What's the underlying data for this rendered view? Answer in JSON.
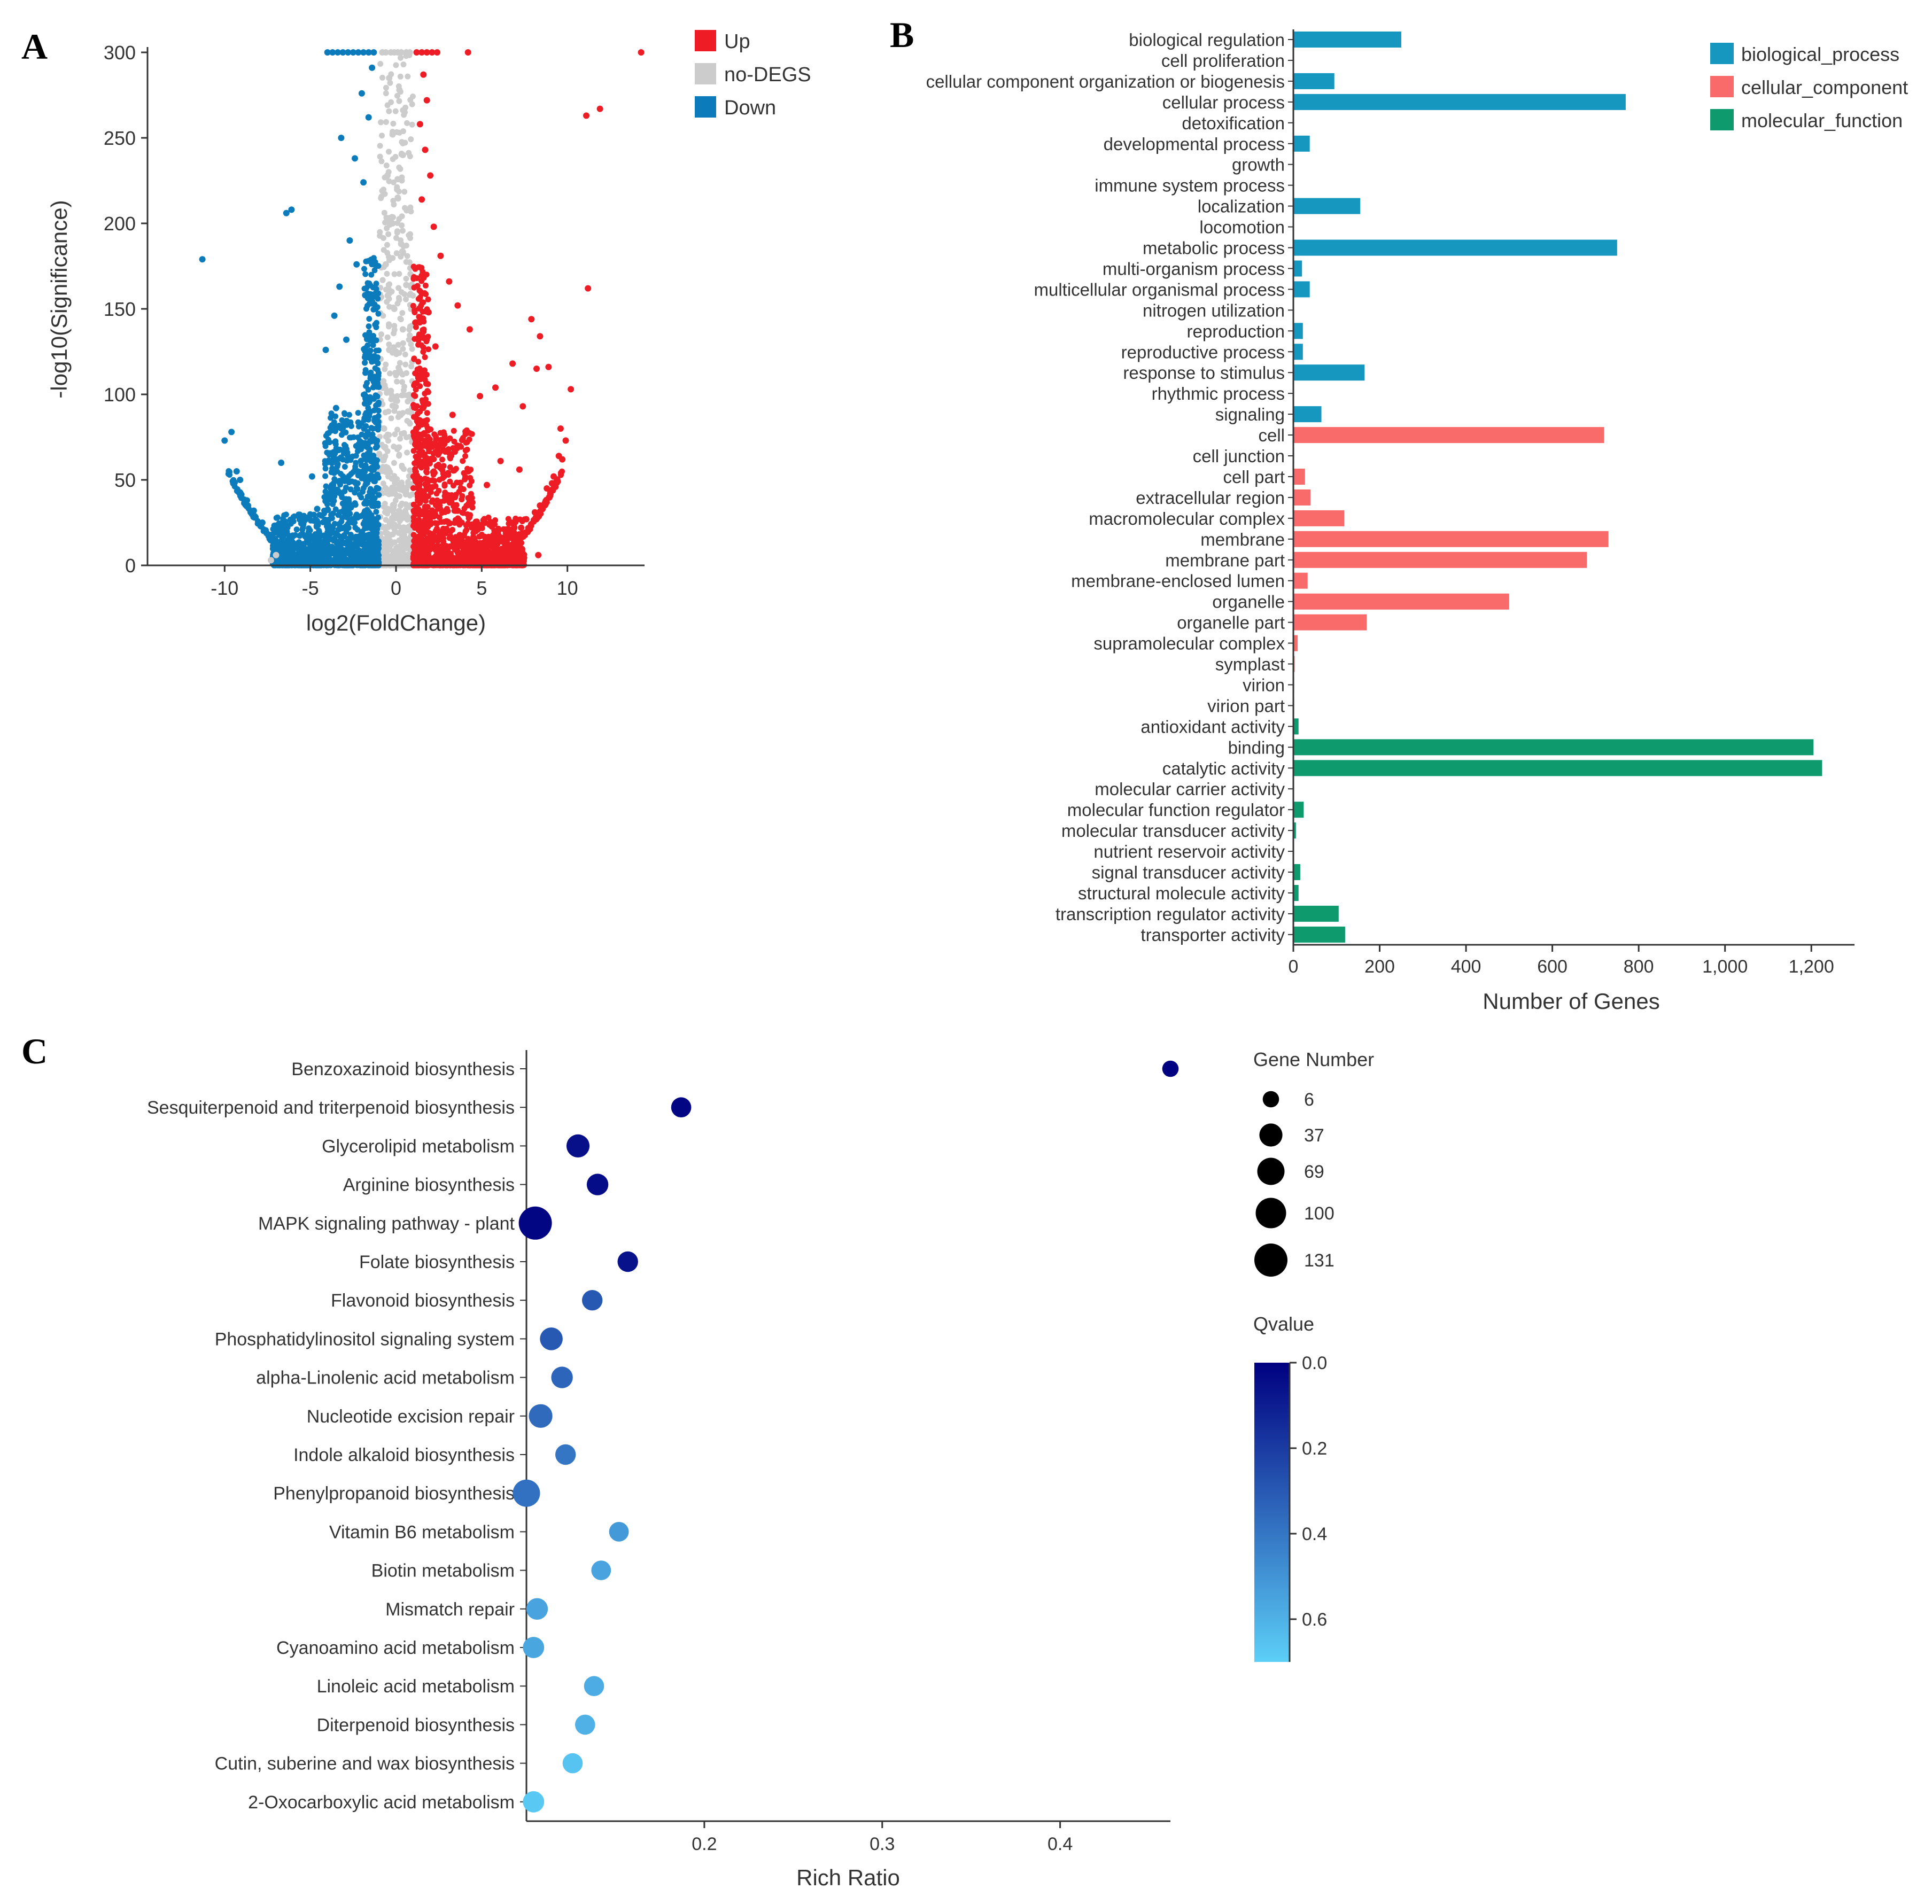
{
  "colors": {
    "up": "#ee1c25",
    "nodeg": "#cccccc",
    "down": "#0c7bbc",
    "biological_process": "#1597c0",
    "cellular_component": "#f96a6a",
    "molecular_function": "#0f9a6e",
    "q_low": "#000080",
    "q_high": "#5ccff7",
    "axis": "#333333",
    "text": "#333333"
  },
  "panels": {
    "a": "A",
    "b": "B",
    "c": "C"
  },
  "chart_data": [
    {
      "id": "A",
      "type": "scatter",
      "title": "",
      "xlabel": "log2(FoldChange)",
      "ylabel": "-log10(Significance)",
      "xlim": [
        -14.5,
        14.5
      ],
      "ylim": [
        0,
        300
      ],
      "xticks": [
        -10,
        -5,
        0,
        5,
        10
      ],
      "yticks": [
        0,
        50,
        100,
        150,
        200,
        250,
        300
      ],
      "legend": [
        {
          "key": "up",
          "label": "Up"
        },
        {
          "key": "nodeg",
          "label": "no-DEGS"
        },
        {
          "key": "down",
          "label": "Down"
        }
      ],
      "points_up": [
        [
          1.2,
          300
        ],
        [
          1.5,
          300
        ],
        [
          1.8,
          300
        ],
        [
          2.1,
          300
        ],
        [
          2.4,
          300
        ],
        [
          4.2,
          300
        ],
        [
          14.3,
          300
        ],
        [
          11.9,
          267
        ],
        [
          11.1,
          263
        ],
        [
          1.6,
          287
        ],
        [
          1.8,
          272
        ],
        [
          1.4,
          258
        ],
        [
          1.7,
          243
        ],
        [
          2.0,
          228
        ],
        [
          1.5,
          214
        ],
        [
          2.2,
          198
        ],
        [
          2.6,
          181
        ],
        [
          3.1,
          166
        ],
        [
          11.2,
          162
        ],
        [
          3.6,
          152
        ],
        [
          7.9,
          144
        ],
        [
          8.4,
          134
        ],
        [
          1.9,
          148
        ],
        [
          4.3,
          138
        ],
        [
          2.3,
          128
        ],
        [
          8.2,
          115
        ],
        [
          8.9,
          116
        ],
        [
          6.8,
          118
        ],
        [
          10.2,
          103
        ],
        [
          5.8,
          104
        ],
        [
          4.9,
          99
        ],
        [
          7.4,
          93
        ],
        [
          3.3,
          88
        ],
        [
          9.6,
          80
        ],
        [
          9.9,
          73
        ],
        [
          9.5,
          64
        ],
        [
          7.2,
          56
        ],
        [
          6.1,
          61
        ],
        [
          5.3,
          47
        ],
        [
          4.3,
          38
        ],
        [
          3.6,
          32
        ],
        [
          8.8,
          45
        ],
        [
          9.2,
          52
        ],
        [
          8.4,
          35
        ],
        [
          7.6,
          27
        ],
        [
          6.9,
          22
        ],
        [
          6.2,
          16
        ],
        [
          5.6,
          11
        ],
        [
          4.9,
          7
        ],
        [
          4.3,
          4
        ],
        [
          3.8,
          2
        ],
        [
          9.7,
          62
        ],
        [
          9.1,
          48
        ],
        [
          8.1,
          31
        ],
        [
          7.3,
          22
        ],
        [
          5.2,
          9
        ],
        [
          8.3,
          6
        ]
      ],
      "points_down": [
        [
          -1.3,
          300
        ],
        [
          -1.6,
          300
        ],
        [
          -1.9,
          300
        ],
        [
          -2.2,
          300
        ],
        [
          -2.5,
          300
        ],
        [
          -2.8,
          300
        ],
        [
          -3.1,
          300
        ],
        [
          -3.4,
          300
        ],
        [
          -3.7,
          300
        ],
        [
          -4.0,
          300
        ],
        [
          -1.4,
          291
        ],
        [
          -2.0,
          276
        ],
        [
          -1.6,
          262
        ],
        [
          -3.2,
          250
        ],
        [
          -2.4,
          238
        ],
        [
          -1.9,
          224
        ],
        [
          -6.1,
          208
        ],
        [
          -6.4,
          206
        ],
        [
          -2.7,
          190
        ],
        [
          -11.3,
          179
        ],
        [
          -2.3,
          176
        ],
        [
          -3.3,
          163
        ],
        [
          -1.8,
          158
        ],
        [
          -3.6,
          146
        ],
        [
          -2.9,
          132
        ],
        [
          -4.1,
          126
        ],
        [
          -9.6,
          78
        ],
        [
          -10.0,
          73
        ],
        [
          -9.3,
          55
        ],
        [
          -9.1,
          50
        ],
        [
          -6.7,
          60
        ],
        [
          -4.9,
          52
        ],
        [
          -8.7,
          38
        ],
        [
          -8.3,
          32
        ],
        [
          -7.8,
          25
        ],
        [
          -7.2,
          18
        ],
        [
          -6.6,
          12
        ],
        [
          -6.0,
          7
        ],
        [
          -5.4,
          4
        ],
        [
          -4.9,
          2
        ],
        [
          -3.9,
          41
        ],
        [
          -4.6,
          33
        ],
        [
          -5.6,
          28
        ],
        [
          -3.7,
          22
        ],
        [
          -2.9,
          68
        ],
        [
          -3.5,
          92
        ]
      ],
      "points_nodeg": [
        [
          -0.3,
          300
        ],
        [
          -0.1,
          300
        ],
        [
          0.1,
          300
        ],
        [
          0.3,
          300
        ],
        [
          0.6,
          300
        ],
        [
          0.8,
          300
        ],
        [
          -0.6,
          300
        ],
        [
          -0.8,
          300
        ],
        [
          -0.4,
          285
        ],
        [
          0.2,
          278
        ],
        [
          0.5,
          265
        ],
        [
          -0.2,
          252
        ],
        [
          0.4,
          240
        ],
        [
          -0.5,
          228
        ],
        [
          0.1,
          215
        ],
        [
          -0.2,
          200
        ],
        [
          0.3,
          188
        ],
        [
          -0.6,
          176
        ],
        [
          0.6,
          164
        ],
        [
          -0.1,
          150
        ],
        [
          0.4,
          138
        ],
        [
          -0.4,
          126
        ],
        [
          0.2,
          114
        ],
        [
          -0.3,
          102
        ],
        [
          0.7,
          90
        ],
        [
          -0.7,
          80
        ],
        [
          -7.3,
          3
        ],
        [
          -7.0,
          6
        ]
      ],
      "clusters": {
        "up": [
          {
            "x": [
              1.0,
              1.9
            ],
            "ymax": 175
          },
          {
            "x": [
              1.9,
              4.5
            ],
            "ymax": 80
          },
          {
            "x": [
              4.5,
              7.5
            ],
            "ymax": 28
          }
        ],
        "down": [
          {
            "x": [
              -1.9,
              -1.0
            ],
            "ymax": 180
          },
          {
            "x": [
              -4.2,
              -1.9
            ],
            "ymax": 90
          },
          {
            "x": [
              -7.2,
              -4.2
            ],
            "ymax": 30
          }
        ],
        "nodeg": [
          {
            "x": [
              -1.0,
              1.0
            ],
            "ymax": 300
          }
        ]
      }
    },
    {
      "id": "B",
      "type": "bar",
      "orientation": "horizontal",
      "title": "",
      "xlabel": "Number of Genes",
      "ylabel": "",
      "xlim": [
        0,
        1300
      ],
      "xticks": [
        0,
        200,
        400,
        600,
        800,
        1000,
        1200
      ],
      "xtick_labels": [
        "0",
        "200",
        "400",
        "600",
        "800",
        "1,000",
        "1,200"
      ],
      "legend": [
        {
          "key": "biological_process",
          "label": "biological_process"
        },
        {
          "key": "cellular_component",
          "label": "cellular_component"
        },
        {
          "key": "molecular_function",
          "label": "molecular_function"
        }
      ],
      "bars": [
        {
          "label": "biological regulation",
          "value": 250,
          "group": "biological_process"
        },
        {
          "label": "cell proliferation",
          "value": 0,
          "group": "biological_process"
        },
        {
          "label": "cellular component organization or biogenesis",
          "value": 95,
          "group": "biological_process"
        },
        {
          "label": "cellular process",
          "value": 770,
          "group": "biological_process"
        },
        {
          "label": "detoxification",
          "value": 0,
          "group": "biological_process"
        },
        {
          "label": "developmental process",
          "value": 38,
          "group": "biological_process"
        },
        {
          "label": "growth",
          "value": 0,
          "group": "biological_process"
        },
        {
          "label": "immune system process",
          "value": 0,
          "group": "biological_process"
        },
        {
          "label": "localization",
          "value": 155,
          "group": "biological_process"
        },
        {
          "label": "locomotion",
          "value": 0,
          "group": "biological_process"
        },
        {
          "label": "metabolic process",
          "value": 750,
          "group": "biological_process"
        },
        {
          "label": "multi-organism process",
          "value": 20,
          "group": "biological_process"
        },
        {
          "label": "multicellular organismal process",
          "value": 38,
          "group": "biological_process"
        },
        {
          "label": "nitrogen utilization",
          "value": 0,
          "group": "biological_process"
        },
        {
          "label": "reproduction",
          "value": 22,
          "group": "biological_process"
        },
        {
          "label": "reproductive process",
          "value": 22,
          "group": "biological_process"
        },
        {
          "label": "response to stimulus",
          "value": 165,
          "group": "biological_process"
        },
        {
          "label": "rhythmic process",
          "value": 0,
          "group": "biological_process"
        },
        {
          "label": "signaling",
          "value": 65,
          "group": "biological_process"
        },
        {
          "label": "cell",
          "value": 720,
          "group": "cellular_component"
        },
        {
          "label": "cell junction",
          "value": 2,
          "group": "cellular_component"
        },
        {
          "label": "cell part",
          "value": 27,
          "group": "cellular_component"
        },
        {
          "label": "extracellular region",
          "value": 40,
          "group": "cellular_component"
        },
        {
          "label": "macromolecular complex",
          "value": 118,
          "group": "cellular_component"
        },
        {
          "label": "membrane",
          "value": 730,
          "group": "cellular_component"
        },
        {
          "label": "membrane part",
          "value": 680,
          "group": "cellular_component"
        },
        {
          "label": "membrane-enclosed lumen",
          "value": 33,
          "group": "cellular_component"
        },
        {
          "label": "organelle",
          "value": 500,
          "group": "cellular_component"
        },
        {
          "label": "organelle part",
          "value": 170,
          "group": "cellular_component"
        },
        {
          "label": "supramolecular complex",
          "value": 10,
          "group": "cellular_component"
        },
        {
          "label": "symplast",
          "value": 3,
          "group": "cellular_component"
        },
        {
          "label": "virion",
          "value": 2,
          "group": "cellular_component"
        },
        {
          "label": "virion part",
          "value": 2,
          "group": "cellular_component"
        },
        {
          "label": "antioxidant activity",
          "value": 12,
          "group": "molecular_function"
        },
        {
          "label": "binding",
          "value": 1205,
          "group": "molecular_function"
        },
        {
          "label": "catalytic activity",
          "value": 1225,
          "group": "molecular_function"
        },
        {
          "label": "molecular carrier activity",
          "value": 0,
          "group": "molecular_function"
        },
        {
          "label": "molecular function regulator",
          "value": 24,
          "group": "molecular_function"
        },
        {
          "label": "molecular transducer activity",
          "value": 6,
          "group": "molecular_function"
        },
        {
          "label": "nutrient reservoir activity",
          "value": 0,
          "group": "molecular_function"
        },
        {
          "label": "signal transducer activity",
          "value": 16,
          "group": "molecular_function"
        },
        {
          "label": "structural molecule activity",
          "value": 12,
          "group": "molecular_function"
        },
        {
          "label": "transcription regulator activity",
          "value": 105,
          "group": "molecular_function"
        },
        {
          "label": "transporter activity",
          "value": 120,
          "group": "molecular_function"
        }
      ]
    },
    {
      "id": "C",
      "type": "scatter",
      "subtype": "bubble",
      "title": "",
      "xlabel": "Rich Ratio",
      "ylabel": "",
      "xlim": [
        0.1,
        0.462
      ],
      "xticks": [
        0.2,
        0.3,
        0.4
      ],
      "size_legend_title": "Gene Number",
      "size_legend": [
        6,
        37,
        69,
        100,
        131
      ],
      "color_legend_title": "Qvalue",
      "color_range": [
        0,
        0.7
      ],
      "color_ticks": [
        "0.0",
        "0.2",
        "0.4",
        "0.6"
      ],
      "points": [
        {
          "label": "Benzoxazinoid biosynthesis",
          "x": 0.462,
          "genes": 6,
          "q": 0.0
        },
        {
          "label": "Sesquiterpenoid and triterpenoid biosynthesis",
          "x": 0.187,
          "genes": 20,
          "q": 0.02
        },
        {
          "label": "Glycerolipid metabolism",
          "x": 0.129,
          "genes": 37,
          "q": 0.05
        },
        {
          "label": "Arginine biosynthesis",
          "x": 0.14,
          "genes": 28,
          "q": 0.04
        },
        {
          "label": "MAPK signaling pathway - plant",
          "x": 0.105,
          "genes": 131,
          "q": 0.02
        },
        {
          "label": "Folate biosynthesis",
          "x": 0.157,
          "genes": 22,
          "q": 0.06
        },
        {
          "label": "Flavonoid biosynthesis",
          "x": 0.137,
          "genes": 22,
          "q": 0.3
        },
        {
          "label": "Phosphatidylinositol signaling system",
          "x": 0.114,
          "genes": 35,
          "q": 0.3
        },
        {
          "label": "alpha-Linolenic acid metabolism",
          "x": 0.12,
          "genes": 28,
          "q": 0.34
        },
        {
          "label": "Nucleotide excision repair",
          "x": 0.108,
          "genes": 40,
          "q": 0.36
        },
        {
          "label": "Indole alkaloid biosynthesis",
          "x": 0.122,
          "genes": 22,
          "q": 0.4
        },
        {
          "label": "Phenylpropanoid biosynthesis",
          "x": 0.1,
          "genes": 69,
          "q": 0.38
        },
        {
          "label": "Vitamin B6 metabolism",
          "x": 0.152,
          "genes": 18,
          "q": 0.52
        },
        {
          "label": "Biotin metabolism",
          "x": 0.142,
          "genes": 18,
          "q": 0.55
        },
        {
          "label": "Mismatch repair",
          "x": 0.106,
          "genes": 28,
          "q": 0.55
        },
        {
          "label": "Cyanoamino acid metabolism",
          "x": 0.104,
          "genes": 26,
          "q": 0.56
        },
        {
          "label": "Linoleic acid metabolism",
          "x": 0.138,
          "genes": 20,
          "q": 0.58
        },
        {
          "label": "Diterpenoid biosynthesis",
          "x": 0.133,
          "genes": 20,
          "q": 0.6
        },
        {
          "label": "Cutin, suberine and wax biosynthesis",
          "x": 0.126,
          "genes": 20,
          "q": 0.66
        },
        {
          "label": "2-Oxocarboxylic acid metabolism",
          "x": 0.104,
          "genes": 26,
          "q": 0.68
        }
      ]
    }
  ]
}
